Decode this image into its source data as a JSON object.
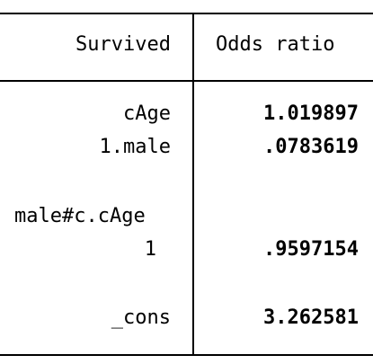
{
  "header": {
    "dependent_var": "Survived",
    "stat_label": "Odds ratio"
  },
  "rows": [
    {
      "label": "cAge",
      "value": "1.019897"
    },
    {
      "label": "1.male",
      "value": ".0783619"
    },
    {
      "label": "male#c.cAge",
      "value": ""
    },
    {
      "label": "1",
      "value": ".9597154"
    },
    {
      "label": "_cons",
      "value": "3.262581"
    }
  ]
}
